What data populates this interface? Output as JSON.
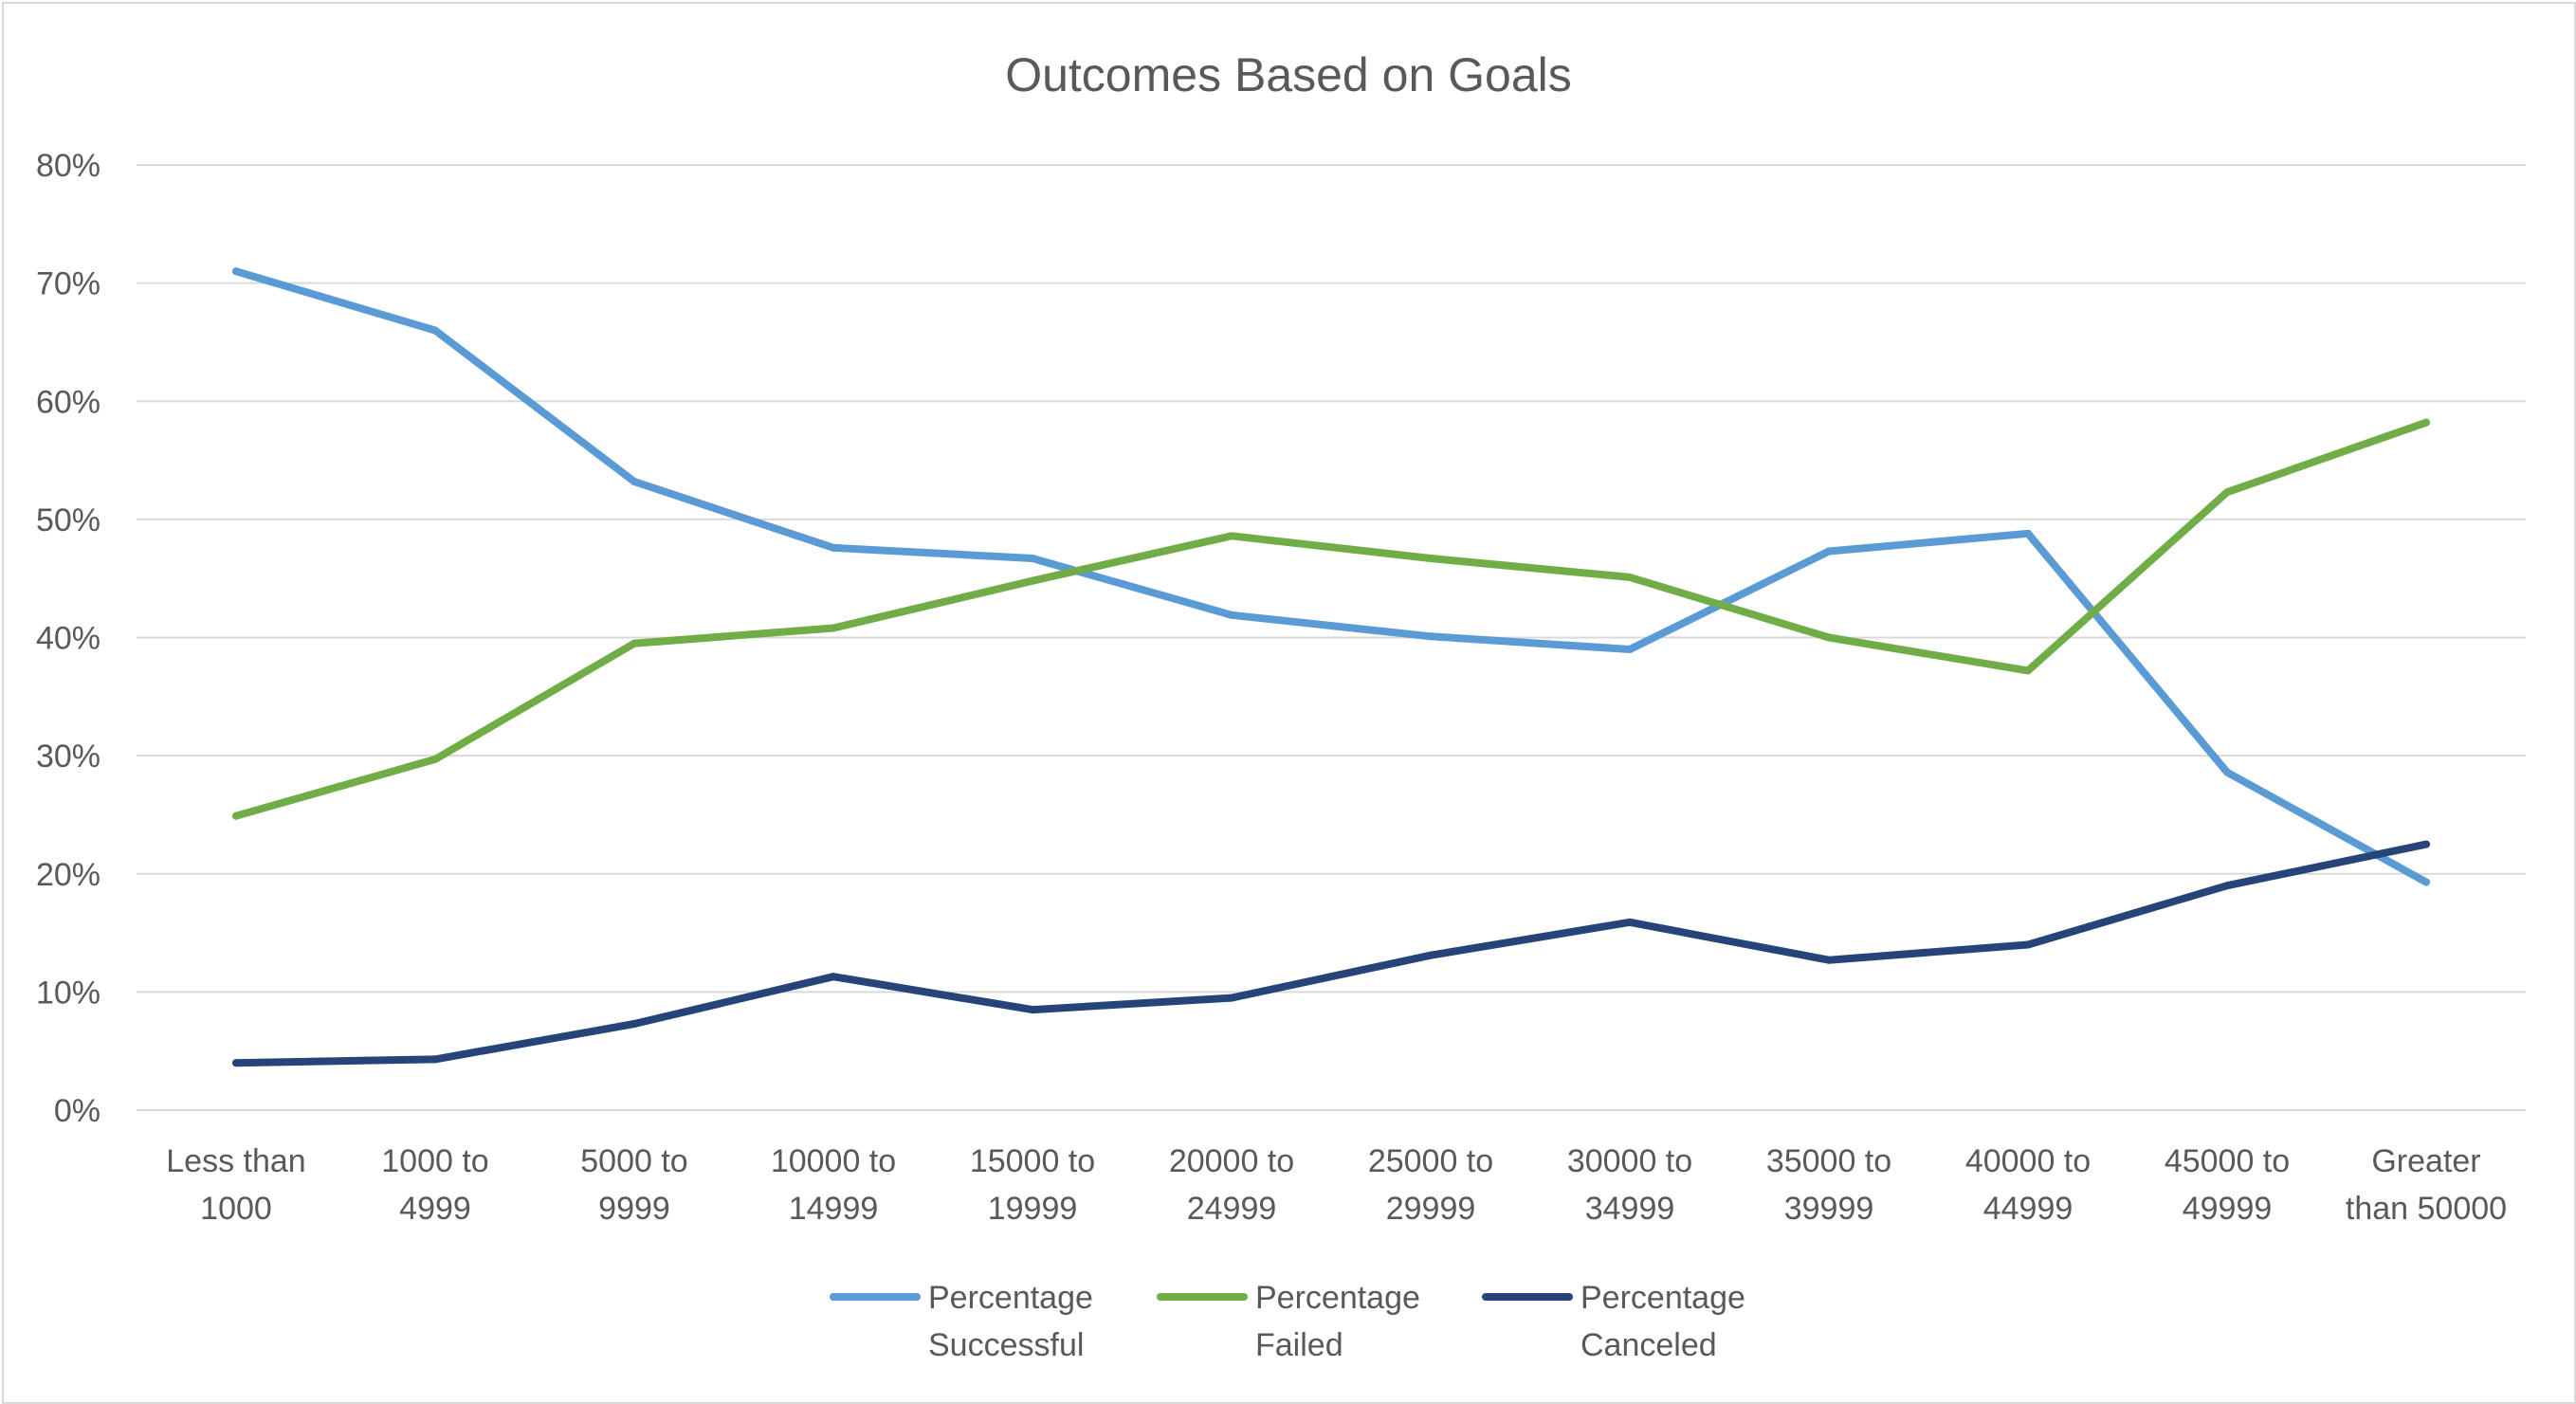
{
  "chart_data": {
    "type": "line",
    "title": "Outcomes Based on Goals",
    "xlabel": "",
    "ylabel": "",
    "categories": [
      [
        "Less than",
        "1000"
      ],
      [
        "1000 to",
        "4999"
      ],
      [
        "5000 to",
        "9999"
      ],
      [
        "10000 to",
        "14999"
      ],
      [
        "15000 to",
        "19999"
      ],
      [
        "20000 to",
        "24999"
      ],
      [
        "25000 to",
        "29999"
      ],
      [
        "30000 to",
        "34999"
      ],
      [
        "35000 to",
        "39999"
      ],
      [
        "40000 to",
        "44999"
      ],
      [
        "45000 to",
        "49999"
      ],
      [
        "Greater",
        "than 50000"
      ]
    ],
    "ylim": [
      0,
      80
    ],
    "yticks": [
      0,
      10,
      20,
      30,
      40,
      50,
      60,
      70,
      80
    ],
    "ytick_labels": [
      "0%",
      "10%",
      "20%",
      "30%",
      "40%",
      "50%",
      "60%",
      "70%",
      "80%"
    ],
    "grid": true,
    "legend_position": "bottom",
    "series": [
      {
        "name": [
          "Percentage",
          "Successful"
        ],
        "color": "#5b9bd5",
        "values": [
          71.0,
          66.0,
          53.2,
          47.6,
          46.7,
          41.9,
          40.1,
          39.0,
          47.3,
          48.8,
          28.6,
          19.3
        ]
      },
      {
        "name": [
          "Percentage",
          "Failed"
        ],
        "color": "#70ad47",
        "values": [
          24.9,
          29.7,
          39.5,
          40.8,
          44.8,
          48.6,
          46.7,
          45.1,
          40.0,
          37.2,
          52.3,
          58.2
        ]
      },
      {
        "name": [
          "Percentage",
          "Canceled"
        ],
        "color": "#264478",
        "values": [
          4.0,
          4.3,
          7.3,
          11.3,
          8.5,
          9.5,
          13.1,
          15.9,
          12.7,
          14.0,
          19.0,
          22.5
        ]
      }
    ]
  }
}
